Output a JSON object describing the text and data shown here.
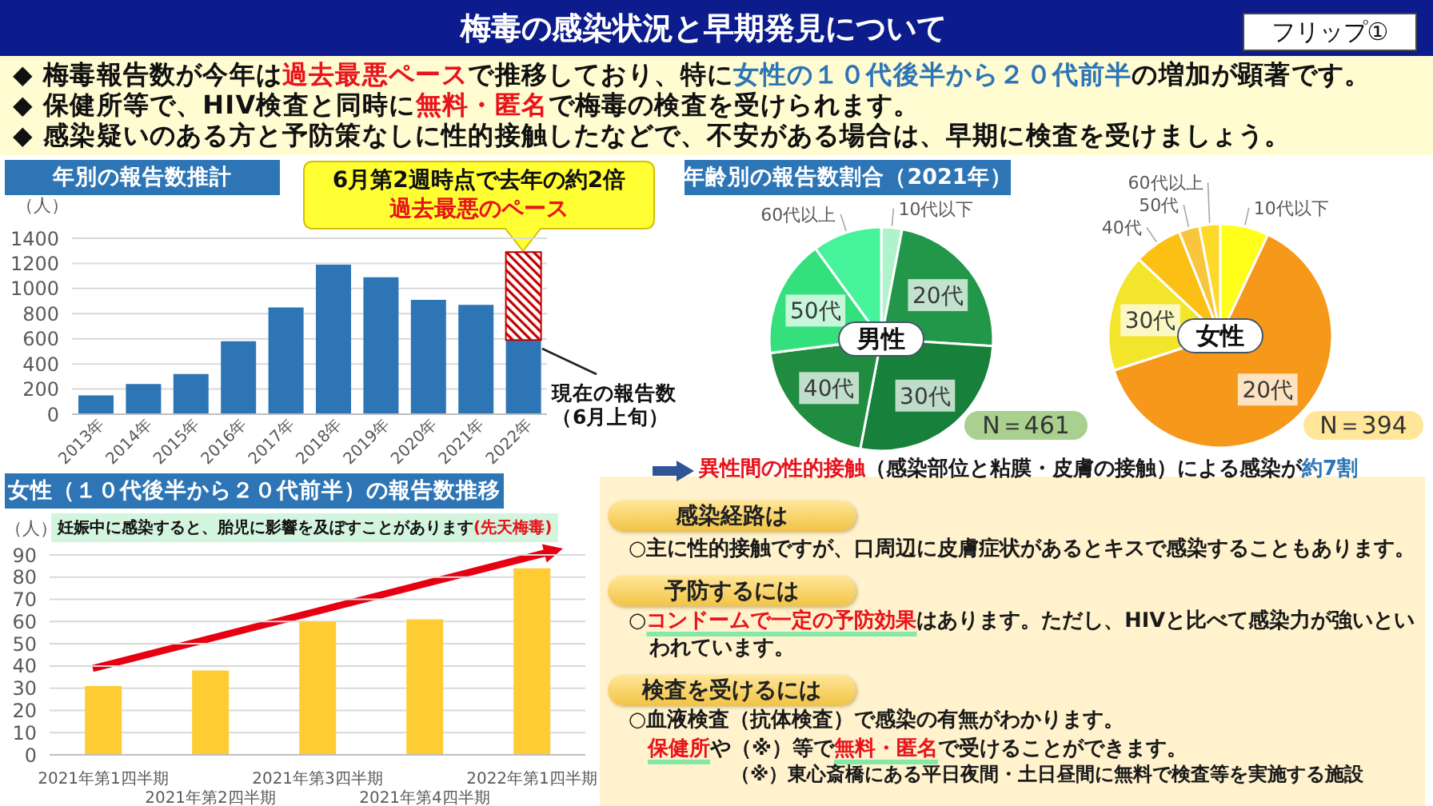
{
  "chart_data": [
    {
      "type": "other",
      "title": "梅毒の感染状況と早期発見について",
      "annotations": [
        "フリップ①",
        "◆ 梅毒報告数が今年は",
        "過去最悪ペース",
        "で推移しており、特に",
        "女性の１０代後半から２０代前半",
        "の増加が顕著です。",
        "◆ 保健所等で、HIV検査と同時に",
        "無料・匿名",
        "で梅毒の検査を受けられます。",
        "◆ 感染疑いのある方と予防策なしに性的接触したなどで、不安がある場合は、早期に検査を受けましょう。"
      ]
    },
    {
      "type": "bar",
      "title": "年別の報告数推計",
      "ylabel": "（人）",
      "categories": [
        "2013年",
        "2014年",
        "2015年",
        "2016年",
        "2017年",
        "2018年",
        "2019年",
        "2020年",
        "2021年",
        "2022年"
      ],
      "stacked": true,
      "series": [
        {
          "color": "#2e75b6",
          "values": [
            150,
            240,
            320,
            580,
            850,
            1190,
            1090,
            910,
            870,
            590
          ]
        },
        {
          "color": "#c00000",
          "values": [
            null,
            null,
            null,
            null,
            null,
            null,
            null,
            null,
            null,
            700
          ]
        }
      ],
      "ylim": [
        0,
        1400
      ],
      "yticks": [
        0,
        200,
        400,
        600,
        800,
        1000,
        1200,
        1400
      ],
      "grid": "y",
      "annotations": [
        "6月第2週時点で去年の約2倍",
        "過去最悪のペース",
        "現在の報告数（6月上旬）"
      ]
    },
    {
      "type": "pie",
      "title": "年齢別の報告数割合（2021年）",
      "subtitle": "男性",
      "categories": [
        "10代以下",
        "20代",
        "30代",
        "40代",
        "50代",
        "60代以上"
      ],
      "values": [
        3,
        23,
        27,
        20,
        17,
        10
      ],
      "colors": [
        "#aef3cb",
        "#22974a",
        "#17803a",
        "#1f8c40",
        "#33e07c",
        "#44f39a"
      ],
      "annotations": [
        "N＝461"
      ]
    },
    {
      "type": "pie",
      "title": "女性",
      "categories": [
        "10代以下",
        "20代",
        "30代",
        "40代",
        "50代",
        "60代以上"
      ],
      "values": [
        7,
        63,
        17,
        7,
        3,
        3
      ],
      "colors": [
        "#ffff1a",
        "#f6991a",
        "#f3e52c",
        "#fcbf14",
        "#f9c53c",
        "#ffd92a"
      ],
      "annotations": [
        "N＝394"
      ]
    },
    {
      "type": "bar",
      "title": "女性（１０代後半から２０代前半）の報告数推移",
      "ylabel": "（人）",
      "categories": [
        "2021年第1四半期",
        "2021年第2四半期",
        "2021年第3四半期",
        "2021年第4四半期",
        "2022年第1四半期"
      ],
      "values": [
        31,
        38,
        60,
        61,
        84
      ],
      "color": "#ffcc33",
      "ylim": [
        0,
        90
      ],
      "yticks": [
        0,
        10,
        20,
        30,
        40,
        50,
        60,
        70,
        80,
        90
      ],
      "grid": "y",
      "annotations": [
        "妊娠中に感染すると、胎児に影響を及ぼすことがあります",
        "(先天梅毒)"
      ]
    },
    {
      "type": "other",
      "annotations": [
        "異性間の性的接触",
        "（感染部位と粘膜・皮膚の接触）による感染が",
        "約7割",
        "感染経路は",
        "○主に性的接触ですが、口周辺に皮膚症状があるとキスで感染することもあります。",
        "予防するには",
        "○",
        "コンドームで一定の予防効果",
        "はあります。ただし、HIVと比べて感染力が強いとい",
        "われています。",
        "検査を受けるには",
        "○血液検査（抗体検査）で感染の有無がわかります。",
        "保健所",
        "や（※）等で",
        "無料・匿名",
        "で受けることができます。",
        "（※）東心斎橋にある平日夜間・土日昼間に無料で検査等を実施する施設"
      ]
    }
  ]
}
